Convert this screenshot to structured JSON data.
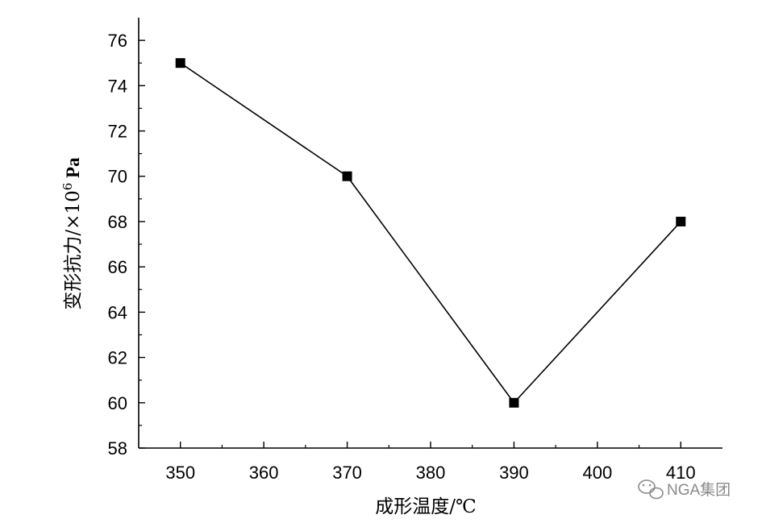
{
  "chart_data": {
    "type": "line",
    "title": "",
    "xlabel": "成形温度/℃",
    "ylabel_main": "变形抗力/×10",
    "ylabel_sup": "6",
    "ylabel_tail": " Pa",
    "x": [
      350,
      370,
      390,
      410
    ],
    "series": [
      {
        "values": [
          75,
          70,
          60,
          68
        ]
      }
    ],
    "xlim": [
      345,
      415
    ],
    "ylim": [
      58,
      77
    ],
    "xticks": [
      350,
      360,
      370,
      380,
      390,
      400,
      410
    ],
    "yticks": [
      58,
      60,
      62,
      64,
      66,
      68,
      70,
      72,
      74,
      76
    ],
    "grid": false,
    "legend": "none",
    "marker": "square",
    "line_color": "#000000",
    "marker_color": "#000000"
  },
  "watermark": {
    "text": "NGA集团",
    "icon": "wechat-icon",
    "color": "#8a8a8a"
  }
}
